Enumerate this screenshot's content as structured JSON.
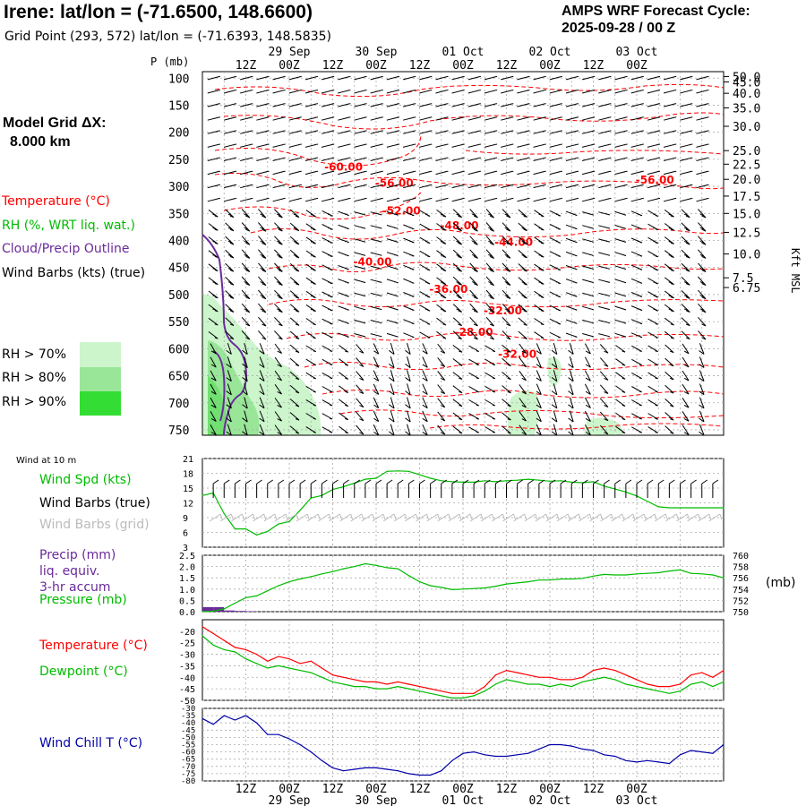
{
  "header": {
    "title": "Irene:  lat/lon = (-71.6500, 148.6600)",
    "subtitle": "Grid Point (293, 572) lat/lon = (-71.6393, 148.5835)",
    "cycle_line1": "AMPS WRF Forecast Cycle:",
    "cycle_line2": "2025-09-28 / 00  Z",
    "grid_line1": "Model Grid ΔX:",
    "grid_line2": "8.000 km"
  },
  "top_legend": {
    "temperature": "Temperature (°C)",
    "rh": "RH (%, WRT liq. wat.)",
    "cloud": "Cloud/Precip Outline",
    "wind": "Wind Barbs (kts) (true)",
    "rh70": "RH > 70%",
    "rh80": "RH > 80%",
    "rh90": "RH > 90%"
  },
  "colors": {
    "temperature": "#ff0000",
    "rh_legend_text": "#00bb00",
    "cloud": "#6a2a9a",
    "rh70": "#ccf5cc",
    "rh80": "#99e699",
    "rh90": "#33dd33",
    "wind_spd": "#00bb00",
    "dewpoint": "#00bb00",
    "wind_chill": "#0000aa",
    "barbs_grid": "#bbbbbb",
    "grid_line": "#aaaaaa"
  },
  "time_axis": {
    "top_ticks": [
      "12Z",
      "00Z",
      "12Z",
      "00Z",
      "12Z",
      "00Z",
      "12Z",
      "00Z",
      "12Z",
      "00Z"
    ],
    "top_dates": [
      "29 Sep",
      "30 Sep",
      "01 Oct",
      "02 Oct",
      "03 Oct"
    ],
    "bottom_ticks": [
      "12Z",
      "00Z",
      "12Z",
      "00Z",
      "12Z",
      "00Z",
      "12Z",
      "00Z",
      "12Z",
      "00Z"
    ],
    "bottom_dates": [
      "29 Sep",
      "30 Sep",
      "01 Oct",
      "02 Oct",
      "03 Oct"
    ]
  },
  "wind10_panel": {
    "title": "Wind at 10 m",
    "spd_label": "Wind Spd (kts)",
    "barbs_true_label": "Wind Barbs (true)",
    "barbs_grid_label": "Wind Barbs (grid)"
  },
  "precip_panel": {
    "precip_line1": "Precip (mm)",
    "precip_line2": "liq. equiv.",
    "precip_line3": "3-hr accum",
    "pressure_label": "Pressure (mb)",
    "right_unit": "(mb)"
  },
  "temp_panel": {
    "temp_label": "Temperature (°C)",
    "dew_label": "Dewpoint (°C)"
  },
  "windchill_panel": {
    "label": "Wind Chill T (°C)"
  },
  "chart_data": [
    {
      "type": "line",
      "name": "vertical cross-section",
      "ylabel": "P (mb)",
      "right_ylabel": "Kft MSL",
      "pressure_ticks": [
        100,
        150,
        200,
        250,
        300,
        350,
        400,
        450,
        500,
        550,
        600,
        650,
        700,
        750
      ],
      "height_ticks": [
        "50.0",
        "45.0",
        "40.0",
        "35.0",
        "30.0",
        "25.0",
        "22.5",
        "20.0",
        "17.5",
        "15.0",
        "12.5",
        "10.0",
        "7.5",
        "6.75"
      ],
      "height_tick_pressures": [
        97,
        107,
        128,
        155,
        189,
        234,
        259,
        287,
        318,
        350,
        385,
        425,
        469,
        487
      ],
      "temperature_contour_labels": [
        {
          "label": "-60.00",
          "hour": 39,
          "p": 264
        },
        {
          "label": "-56.00",
          "hour": 53,
          "p": 294
        },
        {
          "label": "-56.00",
          "hour": 125,
          "p": 288
        },
        {
          "label": "-52.00",
          "hour": 55,
          "p": 345
        },
        {
          "label": "-48.00",
          "hour": 71,
          "p": 373
        },
        {
          "label": "-44.00",
          "hour": 86,
          "p": 403
        },
        {
          "label": "-40.00",
          "hour": 47,
          "p": 440
        },
        {
          "label": "-36.00",
          "hour": 68,
          "p": 490
        },
        {
          "label": "-32.00",
          "hour": 83,
          "p": 530
        },
        {
          "label": "-28.00",
          "hour": 75,
          "p": 570
        },
        {
          "label": "-32.00",
          "hour": 87,
          "p": 610
        }
      ]
    },
    {
      "type": "line",
      "name": "10 m wind speed",
      "ylim": [
        3,
        21
      ],
      "yticks": [
        3,
        6,
        9,
        12,
        15,
        18,
        21
      ],
      "x_hours": [
        0,
        3,
        6,
        9,
        12,
        15,
        18,
        21,
        24,
        27,
        30,
        33,
        36,
        39,
        42,
        45,
        48,
        51,
        54,
        57,
        60,
        63,
        66,
        69,
        72,
        75,
        78,
        81,
        84,
        87,
        90,
        93,
        96,
        99,
        102,
        105,
        108,
        111,
        114,
        117,
        120,
        123,
        126,
        129,
        132,
        135,
        138,
        141,
        144
      ],
      "values": [
        13.5,
        14,
        9.8,
        6.7,
        6.7,
        5.5,
        6.2,
        7.7,
        8.2,
        10.5,
        13,
        13.5,
        14.7,
        15.3,
        16,
        16.8,
        17,
        18.4,
        18.5,
        18.4,
        17.7,
        17,
        16.5,
        16.3,
        16.2,
        16.2,
        16.5,
        16.3,
        16.5,
        16.6,
        16.8,
        16.6,
        16.4,
        16.5,
        16.2,
        16.1,
        16.3,
        15.4,
        14.8,
        14.2,
        13.4,
        12.3,
        11.2,
        11,
        11,
        11,
        11,
        11,
        11
      ]
    },
    {
      "type": "bar",
      "name": "3-hr precipitation",
      "ylim": [
        0,
        2.5
      ],
      "yticks": [
        0.0,
        0.5,
        1.0,
        1.5,
        2.0,
        2.5
      ],
      "x_hours": [
        0,
        3,
        6,
        9,
        12
      ],
      "values": [
        0.2,
        0.2,
        0.05,
        0.03,
        0.02
      ]
    },
    {
      "type": "line",
      "name": "surface pressure",
      "ylim": [
        750,
        760
      ],
      "yticks": [
        750,
        752,
        754,
        756,
        758,
        760
      ],
      "x_hours": [
        0,
        3,
        6,
        9,
        12,
        15,
        18,
        21,
        24,
        27,
        30,
        33,
        36,
        39,
        42,
        45,
        48,
        51,
        54,
        57,
        60,
        63,
        66,
        69,
        72,
        75,
        78,
        81,
        84,
        87,
        90,
        93,
        96,
        99,
        102,
        105,
        108,
        111,
        114,
        117,
        120,
        123,
        126,
        129,
        132,
        135,
        138,
        141,
        144
      ],
      "values": [
        750,
        750.1,
        750.5,
        751.5,
        752.5,
        752.8,
        753.7,
        754.6,
        755.3,
        755.8,
        756.2,
        756.7,
        757.1,
        757.6,
        758,
        758.5,
        758.2,
        757.8,
        757.6,
        756.4,
        755.3,
        754.6,
        754.3,
        753.9,
        754,
        754.1,
        754.2,
        754.5,
        754.9,
        755.1,
        755.3,
        755.6,
        755.6,
        755.8,
        755.8,
        755.9,
        756.3,
        756.6,
        756.5,
        756.5,
        756.7,
        756.8,
        756.9,
        757.2,
        757.4,
        756.8,
        756.7,
        756.5,
        756
      ]
    },
    {
      "type": "line",
      "name": "temperature and dewpoint",
      "ylim": [
        -50,
        -15
      ],
      "yticks": [
        -20,
        -25,
        -30,
        -35,
        -40,
        -45,
        -50
      ],
      "x_hours": [
        0,
        3,
        6,
        9,
        12,
        15,
        18,
        21,
        24,
        27,
        30,
        33,
        36,
        39,
        42,
        45,
        48,
        51,
        54,
        57,
        60,
        63,
        66,
        69,
        72,
        75,
        78,
        81,
        84,
        87,
        90,
        93,
        96,
        99,
        102,
        105,
        108,
        111,
        114,
        117,
        120,
        123,
        126,
        129,
        132,
        135,
        138,
        141,
        144
      ],
      "series": [
        {
          "name": "Temperature (°C)",
          "values": [
            -18,
            -21,
            -24,
            -27,
            -28,
            -30,
            -33,
            -31,
            -32,
            -34,
            -33,
            -36,
            -39,
            -40,
            -41,
            -42,
            -42,
            -43,
            -42,
            -43,
            -44,
            -45,
            -46,
            -47,
            -47,
            -47,
            -44,
            -39,
            -37,
            -38,
            -39,
            -40,
            -40,
            -41,
            -41,
            -40,
            -37,
            -36,
            -37,
            -39,
            -41,
            -43,
            -44,
            -44,
            -43,
            -39,
            -38,
            -40,
            -37
          ]
        },
        {
          "name": "Dewpoint (°C)",
          "values": [
            -22,
            -26,
            -28,
            -29,
            -32,
            -34,
            -36,
            -35,
            -36,
            -37,
            -38,
            -40,
            -42,
            -43,
            -44,
            -44,
            -45,
            -45,
            -44,
            -45,
            -46,
            -47,
            -48,
            -49,
            -49,
            -48,
            -46,
            -43,
            -41,
            -42,
            -43,
            -43,
            -44,
            -43,
            -44,
            -42,
            -41,
            -40,
            -41,
            -43,
            -44,
            -45,
            -46,
            -47,
            -46,
            -43,
            -42,
            -44,
            -42
          ]
        }
      ]
    },
    {
      "type": "line",
      "name": "wind chill",
      "ylim": [
        -80,
        -30
      ],
      "yticks": [
        -30,
        -35,
        -40,
        -45,
        -50,
        -55,
        -60,
        -65,
        -70,
        -75,
        -80
      ],
      "x_hours": [
        0,
        3,
        6,
        9,
        12,
        15,
        18,
        21,
        24,
        27,
        30,
        33,
        36,
        39,
        42,
        45,
        48,
        51,
        54,
        57,
        60,
        63,
        66,
        69,
        72,
        75,
        78,
        81,
        84,
        87,
        90,
        93,
        96,
        99,
        102,
        105,
        108,
        111,
        114,
        117,
        120,
        123,
        126,
        129,
        132,
        135,
        138,
        141,
        144
      ],
      "values": [
        -37,
        -41,
        -35,
        -38,
        -35,
        -40,
        -48,
        -48,
        -51,
        -55,
        -60,
        -66,
        -71,
        -73,
        -72,
        -71,
        -71,
        -72,
        -73,
        -75,
        -76,
        -76,
        -73,
        -66,
        -61,
        -60,
        -62,
        -63,
        -63,
        -62,
        -61,
        -58,
        -55,
        -55,
        -56,
        -58,
        -59,
        -62,
        -63,
        -66,
        -67,
        -66,
        -67,
        -68,
        -62,
        -59,
        -60,
        -61,
        -55
      ]
    }
  ]
}
